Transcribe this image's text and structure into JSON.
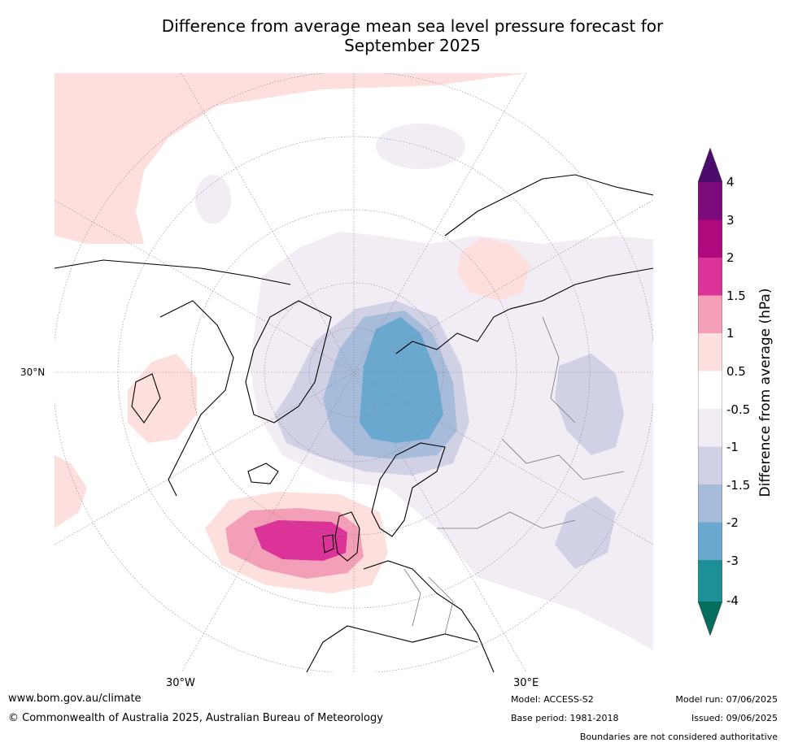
{
  "title_line1": "Difference from average mean sea level pressure forecast for",
  "title_line2": "September 2025",
  "lat_label": "30°N",
  "lon_labels": {
    "west": "30°W",
    "east": "30°E"
  },
  "colorbar": {
    "label": "Difference from average (hPa)",
    "ticks": [
      "4",
      "3",
      "2",
      "1.5",
      "1",
      "0.5",
      "-0.5",
      "-1",
      "-1.5",
      "-2",
      "-3",
      "-4"
    ],
    "colors": {
      "above_4": "#4b0b6d",
      "3_to_4": "#7d0a7a",
      "2_to_3": "#b0087d",
      "1.5_to_2": "#dc3399",
      "1_to_1.5": "#f49fb8",
      "0.5_to_1": "#fde0de",
      "neutral": "#ffffff",
      "m1_to_m0.5": "#f2ecf5",
      "m1.5_to_m1": "#d1d1e6",
      "m2_to_m1.5": "#a7bbda",
      "m3_to_m2": "#6aa8d0",
      "m4_to_m3": "#1d9097",
      "below_m4": "#046d5d"
    }
  },
  "footer": {
    "url": "www.bom.gov.au/climate",
    "copyright": "© Commonwealth of Australia 2025, Australian Bureau of Meteorology",
    "model": "Model: ACCESS-S2",
    "base_period": "Base period: 1981-2018",
    "model_run": "Model run: 07/06/2025",
    "issued": "Issued: 09/06/2025",
    "disclaimer": "Boundaries are not considered authoritative"
  }
}
